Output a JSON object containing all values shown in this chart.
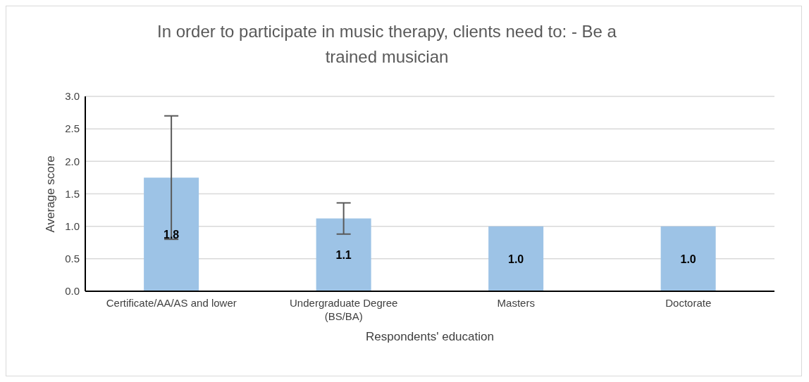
{
  "chart_data": {
    "type": "bar",
    "title": "In order to participate in music therapy, clients need to: - Be a trained musician",
    "xlabel": "Respondents' education",
    "ylabel": "Average score",
    "categories": [
      "Certificate/AA/AS and lower",
      "Undergraduate Degree (BS/BA)",
      "Masters",
      "Doctorate"
    ],
    "values": [
      1.75,
      1.12,
      1.0,
      1.0
    ],
    "errors": [
      0.95,
      0.24,
      0,
      0
    ],
    "value_labels": [
      "1.8",
      "1.1",
      "1.0",
      "1.0"
    ],
    "color": "#9dc3e6",
    "ylim": [
      0,
      3
    ],
    "yticks": [
      {
        "value": 0,
        "label": "0.0"
      },
      {
        "value": 0.5,
        "label": "0.5"
      },
      {
        "value": 1,
        "label": "1.0"
      },
      {
        "value": 1.5,
        "label": "1.5"
      },
      {
        "value": 2,
        "label": "2.0"
      },
      {
        "value": 2.5,
        "label": "2.5"
      },
      {
        "value": 3,
        "label": "3.0"
      }
    ],
    "grid": "y",
    "legend": false
  }
}
